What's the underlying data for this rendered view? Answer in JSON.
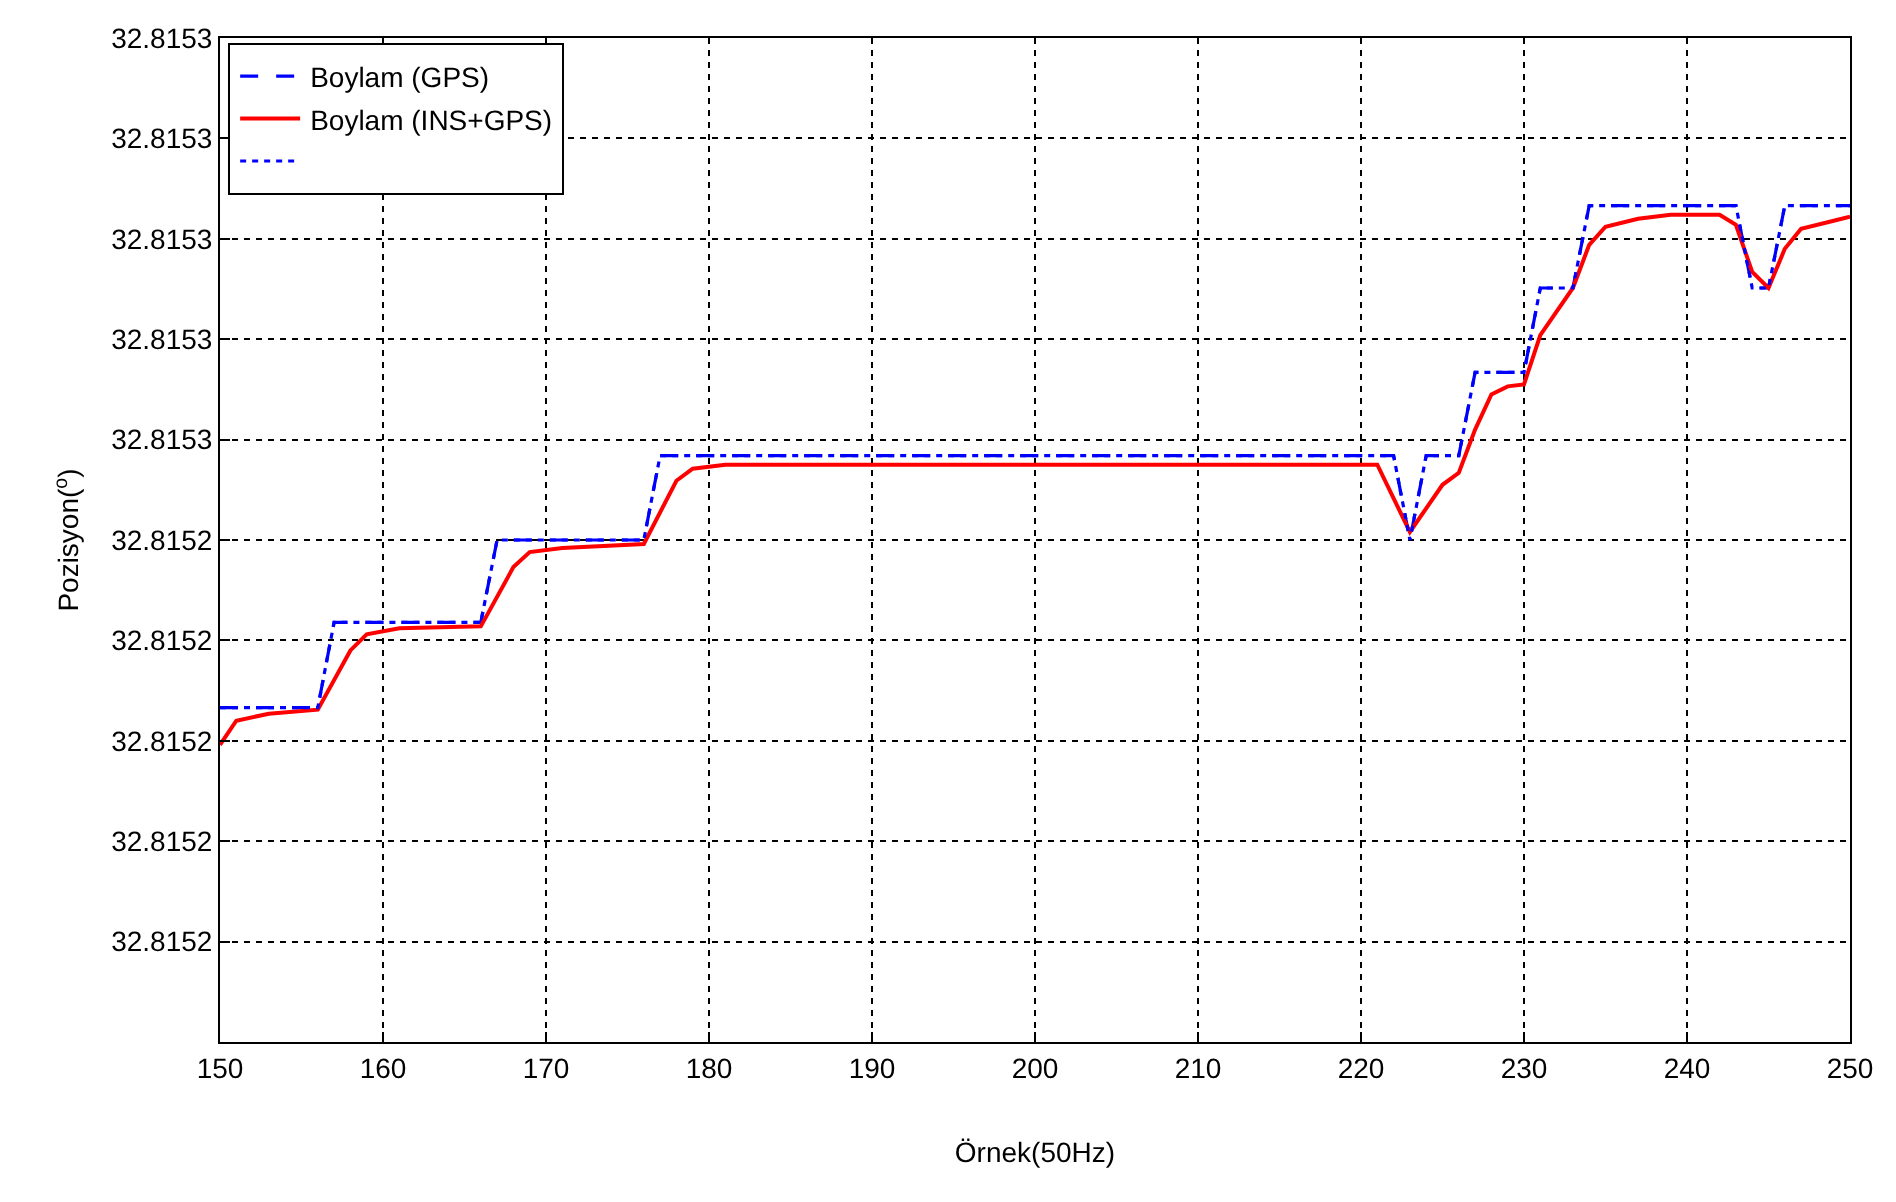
{
  "chart_data": {
    "type": "line",
    "xlabel": "Örnek(50Hz)",
    "ylabel": "Pozisyon($^{o}$)",
    "xlim": [
      150,
      250
    ],
    "xticks": [
      150,
      160,
      170,
      180,
      190,
      200,
      210,
      220,
      230,
      240,
      250
    ],
    "ylim": [
      32.8152,
      32.8153
    ],
    "yticks": [
      {
        "value": 32.8152,
        "label": null
      },
      {
        "value": 32.81521,
        "label": "32.8152"
      },
      {
        "value": 32.81522,
        "label": "32.8152"
      },
      {
        "value": 32.81523,
        "label": "32.8152"
      },
      {
        "value": 32.81524,
        "label": "32.8152"
      },
      {
        "value": 32.81525,
        "label": "32.8152"
      },
      {
        "value": 32.81526,
        "label": "32.8153"
      },
      {
        "value": 32.81527,
        "label": "32.8153"
      },
      {
        "value": 32.81528,
        "label": "32.8153"
      },
      {
        "value": 32.81529,
        "label": "32.8153"
      },
      {
        "value": 32.8153,
        "label": "32.8153"
      }
    ],
    "grid": true,
    "legend": "top left",
    "marker": "none",
    "series": [
      {
        "name": "Boylam (GPS)",
        "color": "#0000ff",
        "line_style": "dashed",
        "x": [
          150,
          156,
          157,
          166,
          167,
          176,
          177,
          222,
          223,
          224,
          226,
          227,
          230,
          231,
          233,
          234,
          243,
          244,
          245,
          246,
          250
        ],
        "values": [
          32.8152333,
          32.8152333,
          32.8152418,
          32.8152418,
          32.81525,
          32.81525,
          32.8152584,
          32.8152584,
          32.81525,
          32.8152584,
          32.8152584,
          32.8152667,
          32.8152667,
          32.8152751,
          32.8152751,
          32.8152833,
          32.8152833,
          32.8152751,
          32.8152751,
          32.8152833,
          32.8152833
        ]
      },
      {
        "name": "Boylam (INS+GPS)",
        "color": "#ff0000",
        "line_style": "solid",
        "x": [
          150,
          151,
          153,
          156,
          158,
          159,
          161,
          166,
          168,
          169,
          171,
          176,
          178,
          179,
          181,
          221,
          223,
          225,
          226,
          227,
          228,
          229,
          230,
          231,
          233,
          234,
          235,
          237,
          239,
          242,
          243,
          244,
          245,
          246,
          247,
          249,
          250
        ],
        "values": [
          32.8152296,
          32.815232,
          32.8152327,
          32.8152331,
          32.815239,
          32.8152406,
          32.8152412,
          32.8152414,
          32.8152473,
          32.8152488,
          32.8152492,
          32.8152496,
          32.8152559,
          32.8152571,
          32.8152575,
          32.8152575,
          32.8152508,
          32.8152555,
          32.8152567,
          32.815261,
          32.8152645,
          32.8152653,
          32.8152655,
          32.8152704,
          32.8152751,
          32.8152794,
          32.8152812,
          32.815282,
          32.8152824,
          32.8152824,
          32.8152814,
          32.8152767,
          32.8152751,
          32.815279,
          32.815281,
          32.8152818,
          32.8152822
        ]
      },
      {
        "color": "#0000ff",
        "line_style": "dotted",
        "x": [
          150,
          156,
          157,
          166,
          167,
          176,
          177,
          222,
          223,
          224,
          226,
          227,
          230,
          231,
          233,
          234,
          243,
          244,
          245,
          246,
          250
        ],
        "values": [
          32.8152333,
          32.8152333,
          32.8152418,
          32.8152418,
          32.81525,
          32.81525,
          32.8152584,
          32.8152584,
          32.81525,
          32.8152584,
          32.8152584,
          32.8152667,
          32.8152667,
          32.8152751,
          32.8152751,
          32.8152833,
          32.8152833,
          32.8152751,
          32.8152751,
          32.8152833,
          32.8152833
        ]
      }
    ]
  }
}
